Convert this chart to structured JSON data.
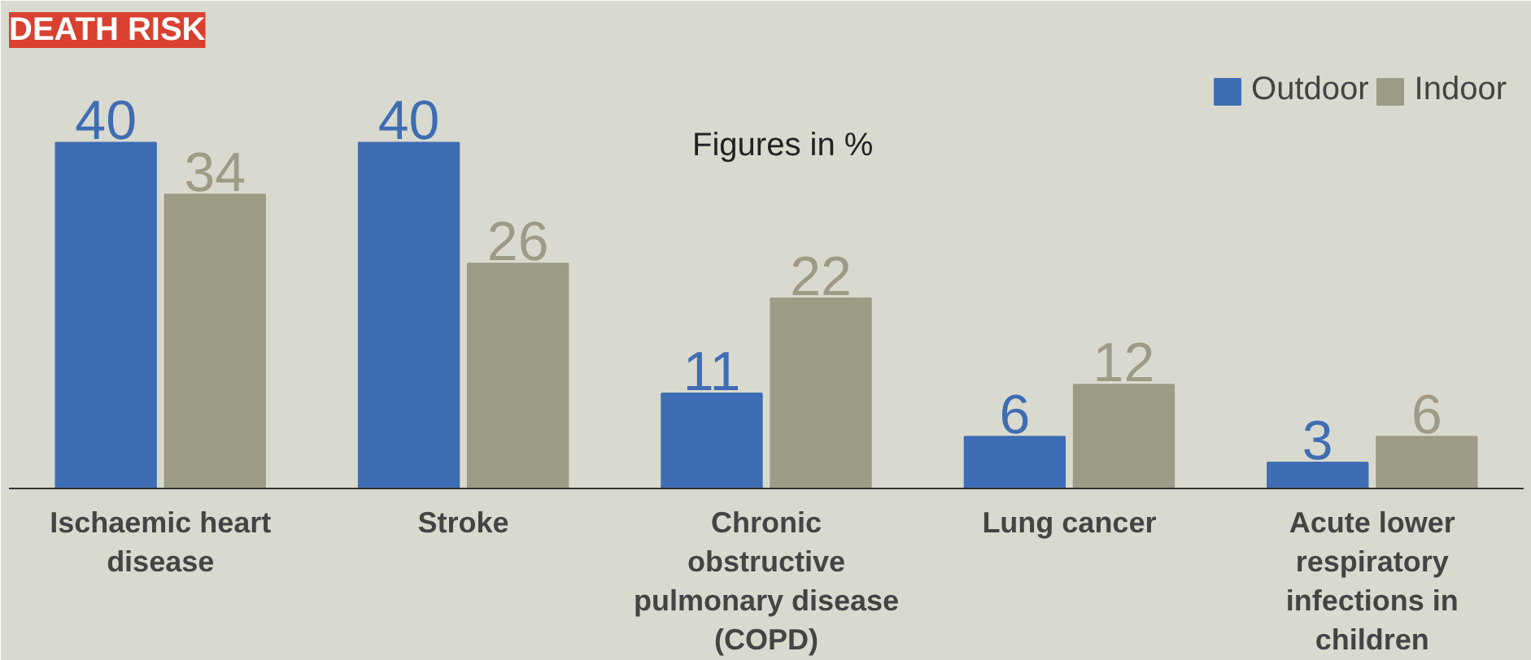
{
  "chart_data": {
    "type": "bar",
    "title": "DEATH RISK",
    "categories": [
      "Ischaemic heart disease",
      "Stroke",
      "Chronic obstructive pulmonary disease (COPD)",
      "Lung cancer",
      "Acute lower respiratory infections in children"
    ],
    "series": [
      {
        "name": "Outdoor",
        "color": "#3f6db3",
        "values": [
          40,
          40,
          11,
          6,
          3
        ]
      },
      {
        "name": "Indoor",
        "color": "#9d9b86",
        "values": [
          34,
          26,
          22,
          12,
          6
        ]
      }
    ],
    "annotations": [
      "Figures in %"
    ],
    "data_labels": true,
    "legend": "top right",
    "grid": false
  }
}
